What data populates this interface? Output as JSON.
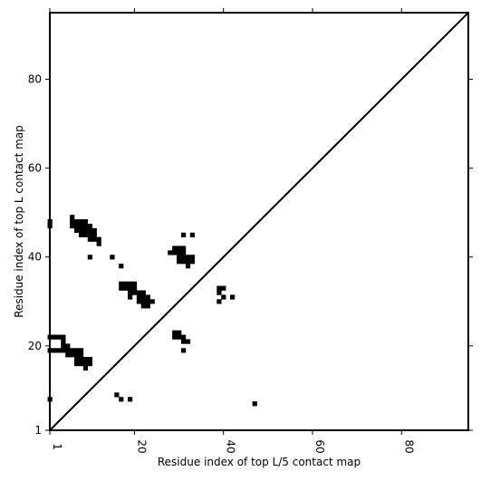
{
  "chart_data": {
    "type": "heatmap",
    "xlabel": "Residue index of top L/5 contact map",
    "ylabel": "Residue index of top L contact map",
    "xlim": [
      1,
      95
    ],
    "ylim": [
      1,
      95
    ],
    "xticks": [
      1,
      20,
      40,
      60,
      80
    ],
    "yticks": [
      1,
      20,
      40,
      60,
      80
    ],
    "diagonal": true,
    "cells": [
      [
        1,
        48
      ],
      [
        1,
        47
      ],
      [
        6,
        49
      ],
      [
        6,
        48
      ],
      [
        7,
        48
      ],
      [
        8,
        48
      ],
      [
        9,
        48
      ],
      [
        7,
        47
      ],
      [
        8,
        47
      ],
      [
        9,
        47
      ],
      [
        10,
        47
      ],
      [
        6,
        47
      ],
      [
        7,
        46
      ],
      [
        8,
        46
      ],
      [
        9,
        46
      ],
      [
        10,
        46
      ],
      [
        11,
        46
      ],
      [
        8,
        45
      ],
      [
        9,
        45
      ],
      [
        10,
        45
      ],
      [
        11,
        45
      ],
      [
        10,
        44
      ],
      [
        11,
        44
      ],
      [
        12,
        44
      ],
      [
        12,
        43
      ],
      [
        10,
        40
      ],
      [
        15,
        40
      ],
      [
        17,
        38
      ],
      [
        17,
        34
      ],
      [
        18,
        34
      ],
      [
        19,
        34
      ],
      [
        20,
        34
      ],
      [
        17,
        33
      ],
      [
        18,
        33
      ],
      [
        19,
        33
      ],
      [
        20,
        33
      ],
      [
        19,
        32
      ],
      [
        20,
        32
      ],
      [
        21,
        32
      ],
      [
        22,
        32
      ],
      [
        19,
        31
      ],
      [
        21,
        31
      ],
      [
        22,
        31
      ],
      [
        23,
        31
      ],
      [
        21,
        30
      ],
      [
        22,
        30
      ],
      [
        23,
        30
      ],
      [
        24,
        30
      ],
      [
        22,
        29
      ],
      [
        23,
        29
      ],
      [
        28,
        41
      ],
      [
        29,
        42
      ],
      [
        30,
        42
      ],
      [
        31,
        42
      ],
      [
        29,
        41
      ],
      [
        30,
        41
      ],
      [
        31,
        41
      ],
      [
        30,
        40
      ],
      [
        31,
        40
      ],
      [
        32,
        40
      ],
      [
        33,
        40
      ],
      [
        30,
        39
      ],
      [
        31,
        39
      ],
      [
        32,
        39
      ],
      [
        33,
        39
      ],
      [
        32,
        38
      ],
      [
        31,
        45
      ],
      [
        33,
        45
      ],
      [
        39,
        33
      ],
      [
        40,
        33
      ],
      [
        39,
        32
      ],
      [
        40,
        31
      ],
      [
        42,
        31
      ],
      [
        39,
        30
      ],
      [
        1,
        22
      ],
      [
        2,
        22
      ],
      [
        3,
        22
      ],
      [
        4,
        22
      ],
      [
        4,
        21
      ],
      [
        4,
        20
      ],
      [
        5,
        20
      ],
      [
        1,
        19
      ],
      [
        2,
        19
      ],
      [
        3,
        19
      ],
      [
        4,
        19
      ],
      [
        5,
        19
      ],
      [
        6,
        19
      ],
      [
        7,
        19
      ],
      [
        8,
        19
      ],
      [
        5,
        18
      ],
      [
        6,
        18
      ],
      [
        7,
        18
      ],
      [
        8,
        18
      ],
      [
        7,
        17
      ],
      [
        8,
        17
      ],
      [
        9,
        17
      ],
      [
        10,
        17
      ],
      [
        7,
        16
      ],
      [
        8,
        16
      ],
      [
        9,
        16
      ],
      [
        10,
        16
      ],
      [
        9,
        15
      ],
      [
        29,
        23
      ],
      [
        30,
        23
      ],
      [
        29,
        22
      ],
      [
        30,
        22
      ],
      [
        31,
        22
      ],
      [
        31,
        21
      ],
      [
        32,
        21
      ],
      [
        31,
        19
      ],
      [
        1,
        8
      ],
      [
        16,
        9
      ],
      [
        17,
        8
      ],
      [
        19,
        8
      ],
      [
        47,
        7
      ]
    ]
  }
}
